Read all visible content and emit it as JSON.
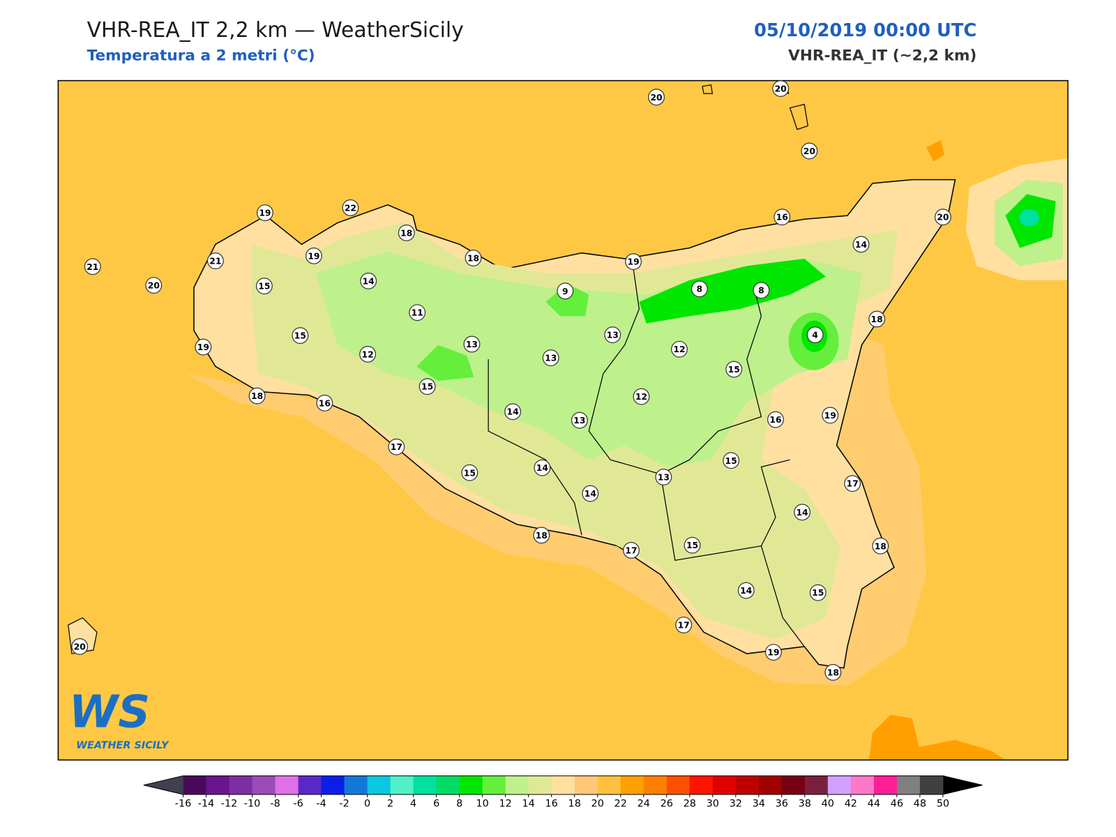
{
  "header": {
    "title": "VHR-REA_IT 2,2 km — WeatherSicily",
    "subtitle": "Temperatura a 2 metri (°C)",
    "datetime": "05/10/2019 00:00 UTC",
    "model": "VHR-REA_IT (~2,2 km)"
  },
  "logo": {
    "mark": "WS",
    "name": "WEATHER SICILY"
  },
  "stations": [
    20,
    20,
    20,
    19,
    22,
    18,
    18,
    19,
    16,
    20,
    14,
    21,
    20,
    21,
    19,
    15,
    14,
    11,
    9,
    8,
    8,
    18,
    4,
    15,
    19,
    12,
    13,
    13,
    13,
    12,
    15,
    15,
    18,
    16,
    14,
    13,
    12,
    16,
    19,
    17,
    15,
    14,
    14,
    13,
    15,
    17,
    14,
    18,
    17,
    15,
    18,
    14,
    15,
    17,
    19,
    18,
    20
  ],
  "colorbar": {
    "ticks": [
      -16,
      -14,
      -12,
      -10,
      -8,
      -6,
      -4,
      -2,
      0,
      2,
      4,
      6,
      8,
      10,
      12,
      14,
      16,
      18,
      20,
      22,
      24,
      26,
      28,
      30,
      32,
      34,
      36,
      38,
      40,
      42,
      44,
      46,
      48,
      50
    ],
    "colors": [
      "#4a0a5a",
      "#6a1490",
      "#7b2fa0",
      "#9b4cb8",
      "#e070e8",
      "#5a28c8",
      "#0a1ee8",
      "#1478d8",
      "#0ac8e0",
      "#50f0c8",
      "#00e0a0",
      "#00dc64",
      "#00e600",
      "#64ef3c",
      "#bef08c",
      "#e0e896",
      "#ffe0a0",
      "#ffc878",
      "#ffc040",
      "#ffa000",
      "#ff8000",
      "#ff5000",
      "#ff1400",
      "#e00000",
      "#c00000",
      "#a00000",
      "#780014",
      "#78203c",
      "#d2a0ff",
      "#ff78c8",
      "#ff1e96",
      "#808080",
      "#404040"
    ],
    "under_color": "#404050",
    "over_color": "#000000"
  }
}
